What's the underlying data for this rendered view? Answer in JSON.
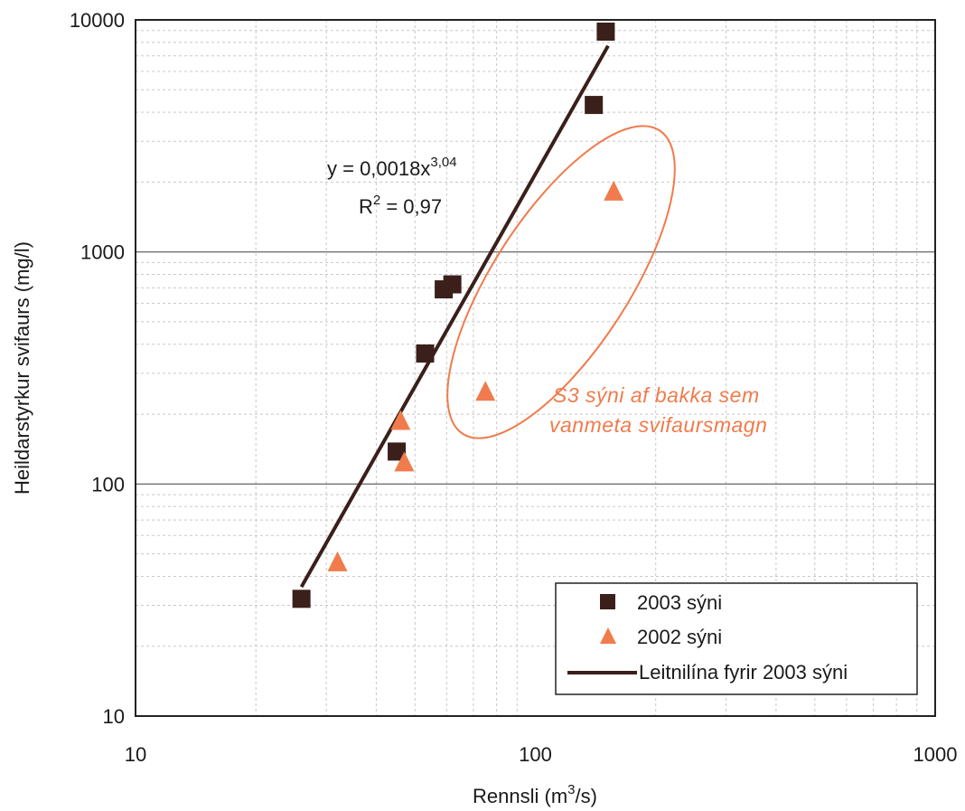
{
  "chart_data": {
    "type": "scatter",
    "x_scale": "log",
    "y_scale": "log",
    "xlim": [
      10,
      1000
    ],
    "ylim": [
      10,
      10000
    ],
    "x_ticks": [
      "10",
      "100",
      "1000"
    ],
    "y_ticks": [
      "10",
      "100",
      "1000",
      "10000"
    ],
    "xlabel": "Rennsli (m",
    "xlabel_sup": "3",
    "xlabel_suffix": "/s)",
    "ylabel": "Heildarstyrkur svifaurs (mg/l)",
    "grid": true,
    "series": [
      {
        "name": "2003 sýni",
        "marker": "square",
        "color": "#3a1f1a",
        "points": [
          {
            "x": 26,
            "y": 32
          },
          {
            "x": 45,
            "y": 138
          },
          {
            "x": 53,
            "y": 365
          },
          {
            "x": 59,
            "y": 690
          },
          {
            "x": 62,
            "y": 725
          },
          {
            "x": 140,
            "y": 4300
          },
          {
            "x": 150,
            "y": 8900
          }
        ]
      },
      {
        "name": "2002 sýni",
        "marker": "triangle",
        "color": "#f07b4c",
        "points": [
          {
            "x": 32,
            "y": 46
          },
          {
            "x": 46,
            "y": 187
          },
          {
            "x": 47,
            "y": 124
          },
          {
            "x": 75,
            "y": 250
          },
          {
            "x": 157,
            "y": 1820
          }
        ]
      }
    ],
    "trendline": {
      "name": "Leitnilína fyrir 2003 sýni",
      "color": "#3a1f1a",
      "coef": 0.0018,
      "exponent": 3.04,
      "x_range": [
        26,
        152
      ],
      "equation_prefix": "y = 0,0018x",
      "equation_exp": "3,04",
      "r2_prefix": "R",
      "r2_sup": "2",
      "r2_suffix": " = 0,97"
    },
    "annotation": {
      "line1": "S3 sýni af bakka sem",
      "line2": "vanmeta svifaursmagn",
      "color": "#f07b4c",
      "ellipse_color": "#f07b4c"
    },
    "legend": {
      "placement": "bottom-right",
      "entries": [
        "2003 sýni",
        "2002 sýni",
        "Leitnilína fyrir 2003 sýni"
      ]
    }
  }
}
